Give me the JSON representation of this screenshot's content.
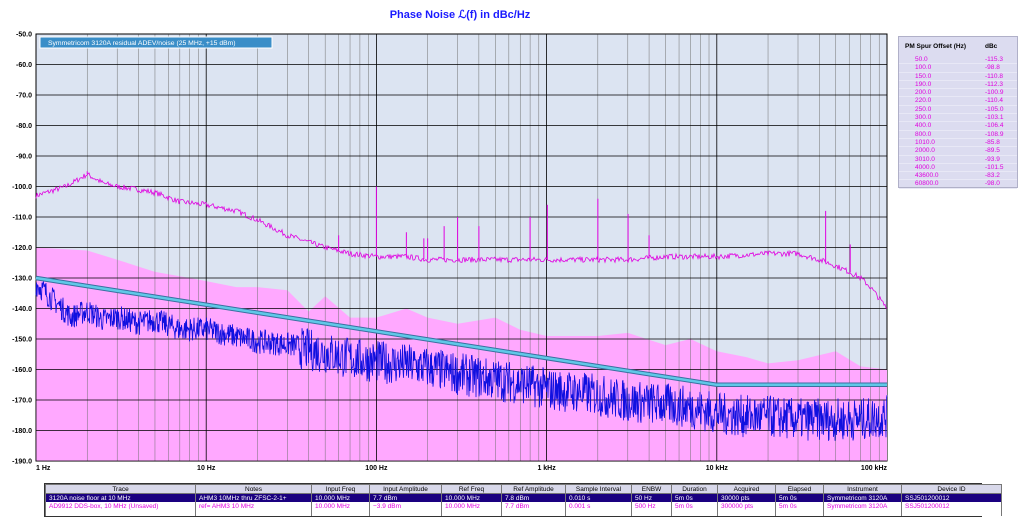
{
  "title": "Phase Noise ℒ(f) in dBc/Hz",
  "chart_data": {
    "type": "line",
    "title": "Phase Noise ℒ(f) in dBc/Hz",
    "xscale": "log",
    "xlim": [
      1,
      100000
    ],
    "ylim": [
      -190,
      -50
    ],
    "grid": true,
    "x_ticks": [
      {
        "v": 1,
        "label": "1 Hz"
      },
      {
        "v": 10,
        "label": "10 Hz"
      },
      {
        "v": 100,
        "label": "100 Hz"
      },
      {
        "v": 1000,
        "label": "1 kHz"
      },
      {
        "v": 10000,
        "label": "10 kHz"
      },
      {
        "v": 100000,
        "label": "100 kHz"
      }
    ],
    "y_ticks": [
      {
        "v": -50,
        "label": "-50.0"
      },
      {
        "v": -60,
        "label": "-60.0"
      },
      {
        "v": -70,
        "label": "-70.0"
      },
      {
        "v": -80,
        "label": "-80.0"
      },
      {
        "v": -90,
        "label": "-90.0"
      },
      {
        "v": -100,
        "label": "-100.0"
      },
      {
        "v": -110,
        "label": "-110.0"
      },
      {
        "v": -120,
        "label": "-120.0"
      },
      {
        "v": -130,
        "label": "-130.0"
      },
      {
        "v": -140,
        "label": "-140.0"
      },
      {
        "v": -150,
        "label": "-150.0"
      },
      {
        "v": -160,
        "label": "-160.0"
      },
      {
        "v": -170,
        "label": "-170.0"
      },
      {
        "v": -180,
        "label": "-180.0"
      },
      {
        "v": -190,
        "label": "-190.0"
      }
    ],
    "annotation": "Symmetricom 3120A residual ADEV/noise (25 MHz, +15 dBm)",
    "series": [
      {
        "name": "3120A noise floor at 10 MHz",
        "color": "#1010e0",
        "x": [
          1,
          1.3,
          1.6,
          2,
          2.5,
          3,
          4,
          5,
          7,
          10,
          14,
          20,
          30,
          50,
          70,
          100,
          150,
          200,
          300,
          500,
          700,
          1000,
          1500,
          2000,
          3000,
          5000,
          7000,
          10000,
          15000,
          20000,
          30000,
          50000,
          70000,
          100000
        ],
        "y": [
          -131,
          -137,
          -142,
          -140,
          -143,
          -142,
          -144,
          -143,
          -146,
          -146,
          -148,
          -150,
          -151,
          -153,
          -155,
          -156,
          -157,
          -158,
          -160,
          -162,
          -163,
          -165,
          -166,
          -167,
          -169,
          -170,
          -171,
          -173,
          -174,
          -174,
          -175,
          -175,
          -175,
          -174
        ]
      },
      {
        "name": "AD9912 DDS-box, 10 MHz (Unsaved)",
        "color": "#e000e0",
        "x": [
          1,
          1.5,
          2,
          2.5,
          3,
          4,
          5,
          7,
          10,
          15,
          20,
          30,
          50,
          70,
          100,
          150,
          200,
          300,
          500,
          700,
          1000,
          2000,
          3000,
          5000,
          7000,
          10000,
          20000,
          30000,
          40000,
          45000,
          50000,
          60000,
          70000,
          80000,
          100000
        ],
        "y": [
          -103,
          -100,
          -96,
          -99,
          -100,
          -101,
          -102,
          -105,
          -106,
          -108,
          -111,
          -116,
          -120,
          -122,
          -123,
          -123,
          -124,
          -124,
          -124,
          -124,
          -124,
          -124,
          -124,
          -123,
          -123,
          -123,
          -122,
          -122,
          -124,
          -125,
          -126,
          -128,
          -130,
          -133,
          -140
        ]
      },
      {
        "name": "Symmetricom 3120A residual ADEV/noise (25 MHz, +15 dBm)",
        "color": "#60c8e8",
        "x": [
          1,
          10000,
          100000
        ],
        "y": [
          -130,
          -165,
          -165
        ]
      }
    ],
    "spurs": [
      {
        "x": 2,
        "y": -95
      },
      {
        "x": 50,
        "y": -120
      },
      {
        "x": 60,
        "y": -116
      },
      {
        "x": 100,
        "y": -100
      },
      {
        "x": 150,
        "y": -115
      },
      {
        "x": 190,
        "y": -117
      },
      {
        "x": 200,
        "y": -117
      },
      {
        "x": 250,
        "y": -113
      },
      {
        "x": 300,
        "y": -110
      },
      {
        "x": 400,
        "y": -113
      },
      {
        "x": 800,
        "y": -110
      },
      {
        "x": 1010,
        "y": -106
      },
      {
        "x": 2000,
        "y": -104
      },
      {
        "x": 3010,
        "y": -109
      },
      {
        "x": 4000,
        "y": -116
      },
      {
        "x": 43600,
        "y": -108
      },
      {
        "x": 60800,
        "y": -119
      }
    ],
    "noise_floor_shade": {
      "color": "#ffa8ff",
      "x": [
        1,
        2,
        3,
        5,
        8,
        10,
        15,
        20,
        30,
        40,
        50,
        70,
        100,
        150,
        200,
        300,
        500,
        700,
        1000,
        1500,
        2000,
        3000,
        5000,
        7000,
        10000,
        15000,
        20000,
        30000,
        50000,
        70000,
        100000
      ],
      "y": [
        -120,
        -121,
        -124,
        -128,
        -130,
        -131,
        -133,
        -133,
        -134,
        -141,
        -136,
        -143,
        -143,
        -140,
        -143,
        -145,
        -143,
        -147,
        -149,
        -149,
        -149,
        -148,
        -152,
        -150,
        -154,
        -156,
        -158,
        -157,
        -154,
        -159,
        -160
      ]
    }
  },
  "spur_table": {
    "header": [
      "PM Spur Offset (Hz)",
      "dBc"
    ],
    "rows": [
      [
        "50.0",
        "-115.3"
      ],
      [
        "100.0",
        "-98.8"
      ],
      [
        "150.0",
        "-110.8"
      ],
      [
        "190.0",
        "-112.3"
      ],
      [
        "200.0",
        "-100.9"
      ],
      [
        "220.0",
        "-110.4"
      ],
      [
        "250.0",
        "-105.0"
      ],
      [
        "300.0",
        "-103.1"
      ],
      [
        "400.0",
        "-106.4"
      ],
      [
        "800.0",
        "-108.9"
      ],
      [
        "1010.0",
        "-85.8"
      ],
      [
        "2000.0",
        "-89.5"
      ],
      [
        "3010.0",
        "-93.9"
      ],
      [
        "4000.0",
        "-101.5"
      ],
      [
        "43600.0",
        "-83.2"
      ],
      [
        "60800.0",
        "-98.0"
      ]
    ]
  },
  "legend_table": {
    "columns": [
      "Trace",
      "Notes",
      "Input Freq",
      "Input Amplitude",
      "Ref Freq",
      "Ref Amplitude",
      "Sample Interval",
      "ENBW",
      "Duration",
      "Acquired",
      "Elapsed",
      "Instrument",
      "Device ID"
    ],
    "rows": [
      [
        "3120A noise floor at 10 MHz",
        "AHM3 10MHz thru ZFSC-2-1+",
        "10.000 MHz",
        "7.7 dBm",
        "10.000 MHz",
        "7.8 dBm",
        "0.010 s",
        "50 Hz",
        "5m 0s",
        "30000 pts",
        "5m 0s",
        "Symmetricom 3120A",
        "SSJ501200012"
      ],
      [
        "AD9912 DDS-box, 10 MHz (Unsaved)",
        "ref= AHM3 10 MHz",
        "10.000 MHz",
        "−3.9 dBm",
        "10.000 MHz",
        "7.7 dBm",
        "0.001 s",
        "500 Hz",
        "5m 0s",
        "300000 pts",
        "5m 0s",
        "Symmetricom 3120A",
        "SSJ501200012"
      ]
    ]
  }
}
